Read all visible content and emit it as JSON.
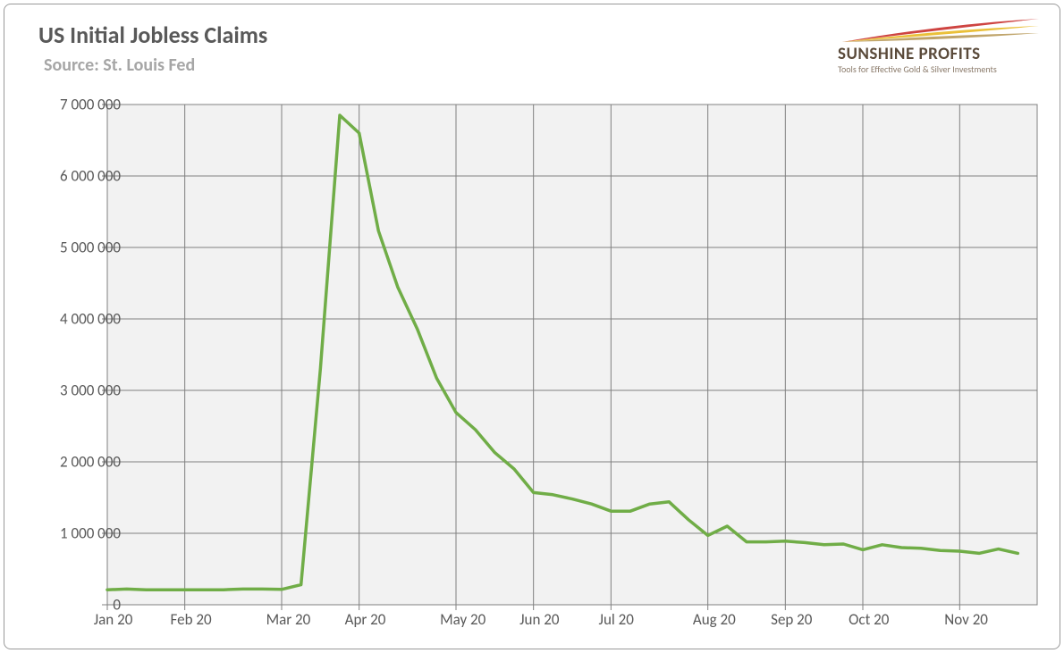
{
  "title": "US Initial Jobless Claims",
  "subtitle": "Source: St. Louis Fed",
  "logo": {
    "line1": "SUNSHINE PROFITS",
    "line2": "Tools for Effective Gold & Silver Investments",
    "swoosh_colors": [
      "#c9302c",
      "#e8b923",
      "#b89a5a"
    ]
  },
  "chart": {
    "type": "line",
    "line_color": "#70ad47",
    "line_width": 3.5,
    "background_color": "#f2f2f2",
    "grid_color": "#808080",
    "axis_color": "#808080",
    "tick_length": 6,
    "label_color": "#595959",
    "label_fontsize": 17,
    "ylim": [
      0,
      7000000
    ],
    "ytick_step": 1000000,
    "ytick_labels": [
      "0",
      "1 000 000",
      "2 000 000",
      "3 000 000",
      "4 000 000",
      "5 000 000",
      "6 000 000",
      "7 000 000"
    ],
    "x_categories": [
      "Jan 20",
      "Feb 20",
      "Mar 20",
      "Apr 20",
      "May 20",
      "Jun 20",
      "Jul 20",
      "Aug 20",
      "Sep 20",
      "Oct 20",
      "Nov 20"
    ],
    "x_total_weeks": 48,
    "x_category_positions_weeks": [
      0,
      4,
      9,
      13,
      18,
      22,
      26,
      31,
      35,
      39,
      44
    ],
    "series": {
      "name": "Initial Jobless Claims",
      "y": [
        210000,
        220000,
        210000,
        210000,
        210000,
        210000,
        210000,
        220000,
        220000,
        215000,
        280000,
        3300000,
        6850000,
        6600000,
        5230000,
        4440000,
        3860000,
        3170000,
        2690000,
        2450000,
        2130000,
        1900000,
        1570000,
        1540000,
        1480000,
        1410000,
        1310000,
        1310000,
        1410000,
        1440000,
        1190000,
        970000,
        1100000,
        880000,
        880000,
        890000,
        870000,
        840000,
        850000,
        770000,
        840000,
        800000,
        790000,
        760000,
        750000,
        720000,
        780000,
        720000
      ]
    }
  }
}
